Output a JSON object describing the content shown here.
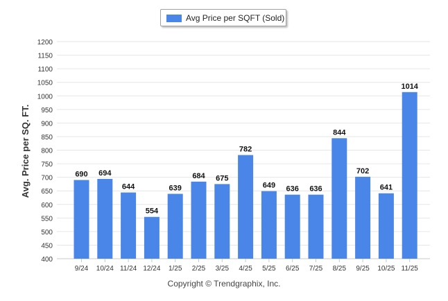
{
  "chart_data": {
    "type": "bar",
    "title": "",
    "xlabel": "",
    "ylabel": "Avg. Price per SQ. FT.",
    "ylim": [
      400,
      1200
    ],
    "ytick_step": 50,
    "grid": true,
    "legend_position": "top-center",
    "categories": [
      "9/24",
      "10/24",
      "11/24",
      "12/24",
      "1/25",
      "2/25",
      "3/25",
      "4/25",
      "5/25",
      "6/25",
      "7/25",
      "8/25",
      "9/25",
      "10/25",
      "11/25"
    ],
    "series": [
      {
        "name": "Avg Price per SQFT (Sold)",
        "values": [
          690,
          694,
          644,
          554,
          639,
          684,
          675,
          782,
          649,
          636,
          636,
          844,
          702,
          641,
          1014
        ]
      }
    ],
    "colors": {
      "bar": "#4a86e8",
      "grid": "#e6e6e6",
      "axis_text": "#333333"
    }
  },
  "footer": {
    "copyright": "Copyright © Trendgraphix, Inc."
  }
}
